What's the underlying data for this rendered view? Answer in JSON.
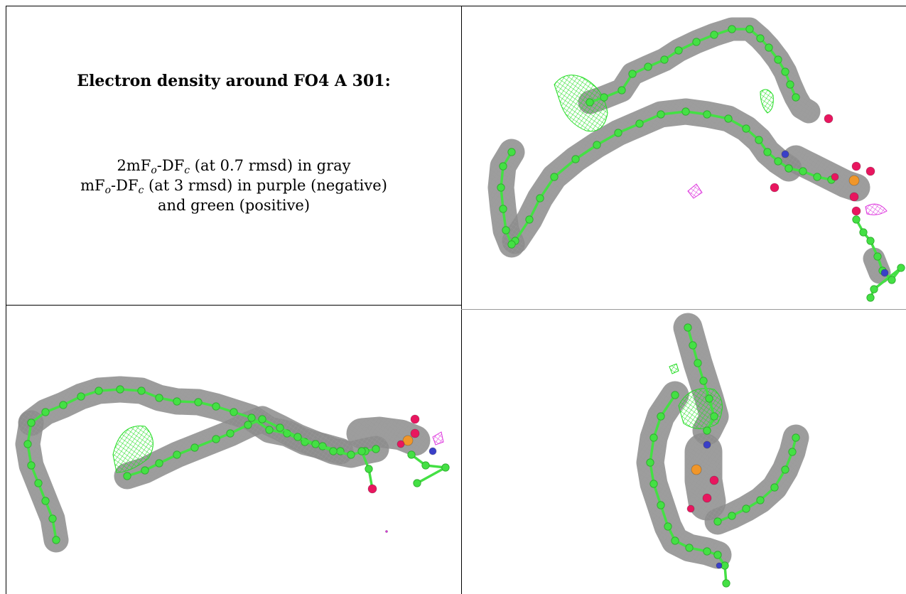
{
  "caption": {
    "title": "Electron density around FO4 A 301:",
    "line1": {
      "a": "2mF",
      "a_sub": "o",
      "b": "-DF",
      "b_sub": "c",
      "c": " (at 0.7 rmsd) in gray"
    },
    "line2": {
      "a": "mF",
      "a_sub": "o",
      "b": "-DF",
      "b_sub": "c",
      "c": " (at 3 rmsd) in purple (negative)"
    },
    "line3": "and green (positive)"
  },
  "colors": {
    "mesh_gray": "#8c8c8c",
    "carbon_green": "#44e044",
    "mesh_green": "#22dd22",
    "mesh_purple": "#dd33dd",
    "oxygen": "#e8165f",
    "phosphorus": "#f0962a",
    "nitrogen": "#3a3fc8"
  }
}
